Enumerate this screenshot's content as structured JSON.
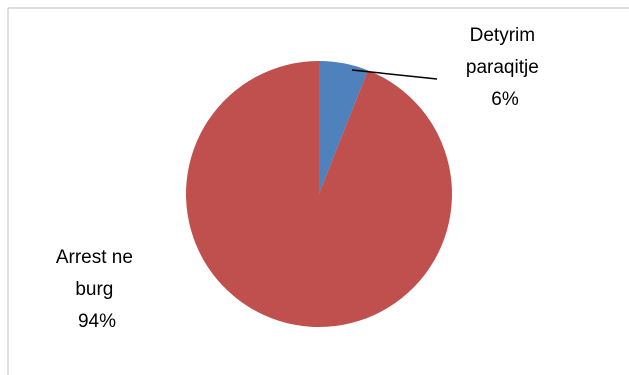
{
  "chart_data": {
    "type": "pie",
    "title": "",
    "legend": "none",
    "slices": [
      {
        "label_lines": [
          "Detyrim",
          "paraqitje"
        ],
        "percent_label": "6%",
        "value": 6,
        "color": "#4F81BD"
      },
      {
        "label_lines": [
          "Arrest ne",
          "burg"
        ],
        "percent_label": "94%",
        "value": 94,
        "color": "#C0504D"
      }
    ]
  }
}
